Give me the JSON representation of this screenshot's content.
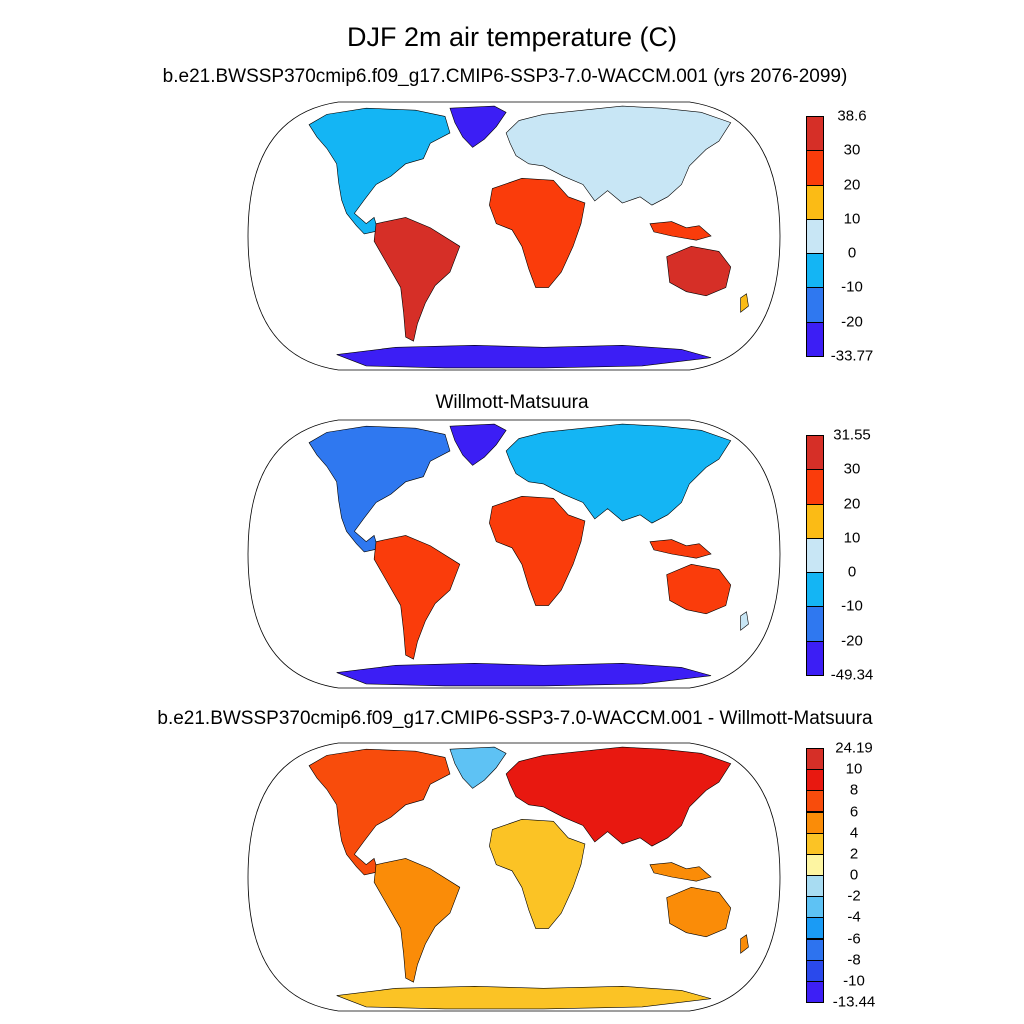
{
  "title": "DJF 2m air temperature (C)",
  "panels": [
    {
      "subtitle": "b.e21.BWSSP370cmip6.f09_g17.CMIP6-SSP3-7.0-WACCM.001 (yrs 2076-2099)",
      "colorbar": {
        "labels": [
          "38.6",
          "30",
          "20",
          "10",
          "0",
          "-10",
          "-20",
          "-33.77"
        ],
        "colors": [
          "#d62f27",
          "#fa3c0b",
          "#fbbb15",
          "#c8e6f5",
          "#14b5f4",
          "#2f78f0",
          "#3c1ef5"
        ]
      }
    },
    {
      "subtitle": "Willmott-Matsuura",
      "colorbar": {
        "labels": [
          "31.55",
          "30",
          "20",
          "10",
          "0",
          "-10",
          "-20",
          "-49.34"
        ],
        "colors": [
          "#d62f27",
          "#fa3c0b",
          "#fbbb15",
          "#c8e6f5",
          "#14b5f4",
          "#2f78f0",
          "#3c1ef5"
        ]
      }
    },
    {
      "subtitle": "b.e21.BWSSP370cmip6.f09_g17.CMIP6-SSP3-7.0-WACCM.001 - Willmott-Matsuura",
      "colorbar": {
        "labels": [
          "24.19",
          "10",
          "8",
          "6",
          "4",
          "2",
          "0",
          "-2",
          "-4",
          "-6",
          "-8",
          "-10",
          "-13.44"
        ],
        "colors": [
          "#d62f27",
          "#e81810",
          "#f84c0c",
          "#fa8c08",
          "#fbc325",
          "#fdf5a2",
          "#a8dcf2",
          "#5ec2f4",
          "#1a9bf5",
          "#2d73ef",
          "#2a49ec",
          "#3d1ff6"
        ]
      }
    }
  ]
}
